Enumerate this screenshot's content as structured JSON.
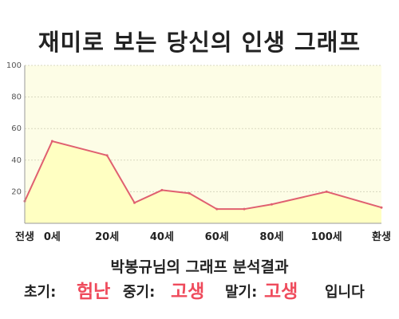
{
  "title": "재미로 보는 당신의 인생 그래프",
  "chart_data": {
    "type": "area",
    "x": [
      -10,
      0,
      20,
      30,
      40,
      50,
      60,
      70,
      80,
      100,
      120
    ],
    "x_tick_labels": [
      {
        "x": -10,
        "label": "전생"
      },
      {
        "x": 0,
        "label": "0세"
      },
      {
        "x": 20,
        "label": "20세"
      },
      {
        "x": 40,
        "label": "40세"
      },
      {
        "x": 60,
        "label": "60세"
      },
      {
        "x": 80,
        "label": "80세"
      },
      {
        "x": 100,
        "label": "100세"
      },
      {
        "x": 120,
        "label": "환생"
      }
    ],
    "xlim": [
      -10,
      120
    ],
    "values": [
      14,
      52,
      43,
      13,
      21,
      19,
      9,
      9,
      12,
      20,
      10
    ],
    "ylim": [
      0,
      100
    ],
    "y_ticks": [
      20,
      40,
      60,
      80,
      100
    ],
    "grid": true,
    "colors": {
      "line": "#e06070",
      "fill": "#ffffc2",
      "plot_bg": "#fdfde6",
      "grid": "#d8d8c0",
      "axis": "#999999"
    }
  },
  "subtitle": "박봉규님의 그래프 분석결과",
  "summary": {
    "early_label": "초기:",
    "early_value": "험난",
    "middle_label": "중기:",
    "middle_value": "고생",
    "late_label": "말기:",
    "late_value": "고생",
    "ending": "입니다",
    "accent_color": "#ef4b5c"
  }
}
